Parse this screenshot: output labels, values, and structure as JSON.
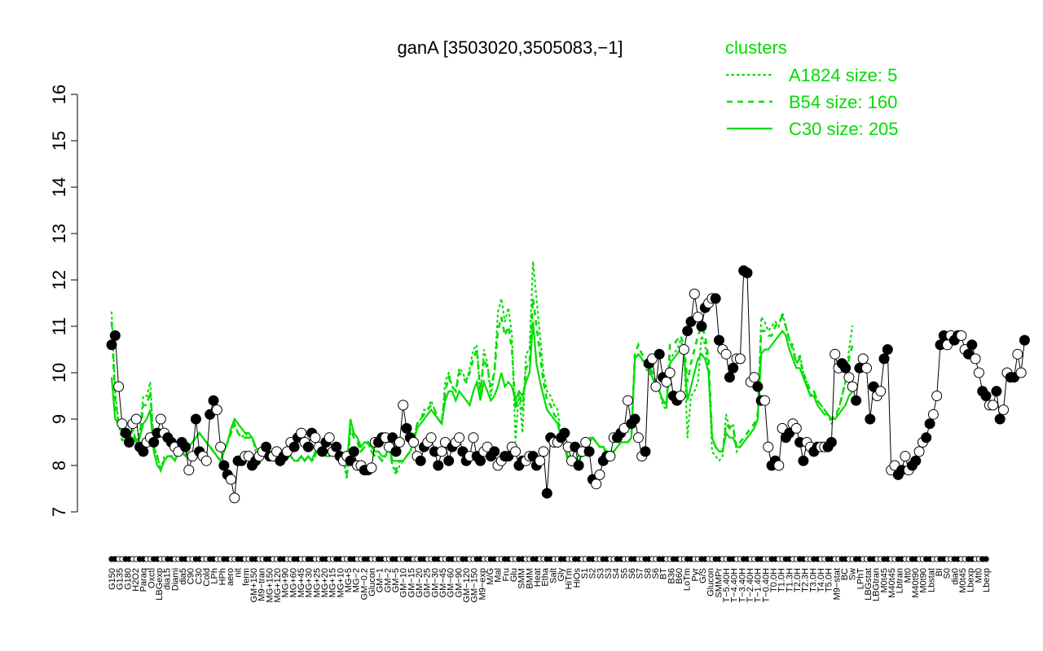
{
  "chart_data": {
    "type": "line",
    "title": "ganA [3503020,3505083,−1]",
    "xlabel": "",
    "ylabel": "",
    "ylim": [
      7,
      16
    ],
    "yticks": [
      "7",
      "8",
      "9",
      "10",
      "11",
      "12",
      "13",
      "14",
      "15",
      "16"
    ],
    "n_points": 250,
    "x_tick_labels": [
      "G150",
      "G135",
      "G180",
      "H2O2",
      "Paraq",
      "Oxctl",
      "LBGexp",
      "dia15",
      "Diami",
      "dia5",
      "C90",
      "C30",
      "Cold",
      "LPh",
      "HPh",
      "aero",
      "nit",
      "ferm",
      "GM+150",
      "M9−tran",
      "MG+150",
      "MG+120",
      "MG+90",
      "MG+60",
      "MG+45",
      "MG+30",
      "MG+25",
      "MG+20",
      "MG+15",
      "MG+10",
      "MG+5",
      "MG−2",
      "GM−0.2",
      "Glucon",
      "GM−1",
      "GM−2",
      "GM−5",
      "GM−10",
      "GM−15",
      "GM−20",
      "GM−25",
      "GM−30",
      "GM−45",
      "GM−60",
      "GM−90",
      "GM−120",
      "GM−150",
      "M9−exp",
      "M/G",
      "Mal",
      "Fru",
      "Glu",
      "SMM",
      "BMM",
      "Heat",
      "Etha",
      "Salt",
      "Gly",
      "HiTm",
      "HiOs",
      "S1",
      "S2",
      "S3",
      "S3",
      "S4",
      "S5",
      "S6",
      "S7",
      "S8",
      "S6",
      "BT",
      "B36",
      "B60",
      "LoTm",
      "Pyr",
      "G/S",
      "Glucon",
      "SMMPr",
      "T−5.40H",
      "T−4.40H",
      "T−3.40H",
      "T−2.40H",
      "T−1.40H",
      "T−0.40H",
      "T0.0H",
      "T1.0H",
      "T1.3H",
      "T2.0H",
      "T2.3H",
      "T3.0H",
      "T4.0H",
      "T5.0H",
      "M9−stat",
      "BC",
      "Sw",
      "LPhT",
      "LBGstat",
      "LBGtran",
      "M0t45",
      "M40t45",
      "Lbtran",
      "Mt0",
      "M40t90",
      "M0t90",
      "Lbstat",
      "BI",
      "S0",
      "dia0",
      "M0t45",
      "Lbexp",
      "Mt0",
      "Lbexp"
    ],
    "legend": {
      "title": "clusters",
      "position": "top-right",
      "entries": [
        {
          "label": "A1824 size: 5",
          "style": "dotted"
        },
        {
          "label": "B54 size: 160",
          "style": "dashed"
        },
        {
          "label": "C30 size: 205",
          "style": "solid"
        }
      ]
    },
    "colors": {
      "cluster": "#00dd00",
      "gene": "#000000"
    },
    "series": [
      {
        "name": "A1824 size: 5",
        "style": "dotted",
        "values": [
          11.3,
          9.6,
          8.9,
          8.5,
          8.7,
          8.4,
          8.8,
          8.5,
          8.7,
          9.5,
          9.5,
          9.8,
          8.4,
          8.2,
          7.9,
          8.2,
          8.2,
          8.2,
          8.1,
          8.3,
          8.3,
          8.2,
          8.4,
          8.5,
          8.6,
          8.7,
          8.6,
          8.5,
          8.4,
          8.3,
          8.2,
          8.1,
          8.3,
          8.5,
          8.7,
          8.9,
          8.7,
          8.6,
          8.7,
          8.6,
          8.6,
          8.3,
          8.3,
          8.4,
          8.2,
          8.3,
          8.2,
          8.1,
          8.0,
          8.3,
          8.2,
          8.2,
          8.1,
          8.1,
          8.2,
          8.1,
          8.2,
          8.1,
          8.2,
          8.4,
          8.3,
          8.2,
          8.2,
          8.4,
          8.3,
          8.2,
          8.1,
          7.7,
          8.8,
          8.7,
          8.6,
          8.3,
          8.4,
          8.5,
          8.3,
          8.2,
          8.2,
          8.1,
          8.2,
          8.4,
          8.0,
          7.8,
          8.0,
          8.1,
          8.2,
          8.3,
          8.6,
          8.9,
          9.0,
          9.2,
          9.2,
          9.4,
          9.2,
          9.0,
          8.9,
          9.8,
          10.0,
          9.7,
          9.6,
          10.1,
          10.0,
          9.8,
          10.1,
          10.5,
          10.6,
          9.4,
          10.5,
          10.2,
          9.5,
          10.0,
          11.3,
          11.6,
          11.1,
          11.4,
          10.8,
          8.5,
          9.6,
          8.7,
          10.4,
          10.5,
          12.4,
          11.6,
          10.8,
          10.0,
          9.6,
          9.5,
          9.3,
          9.2,
          8.6,
          8.4,
          8.1,
          8.0,
          8.1,
          8.1,
          8.2,
          8.3,
          8.6,
          8.6,
          8.5,
          8.4,
          8.4,
          8.2,
          8.3,
          8.3,
          8.4,
          8.5,
          8.5,
          8.5,
          8.6,
          10.3,
          10.4,
          10.3,
          10.1,
          10.0,
          9.9,
          9.7,
          9.6,
          9.3,
          9.2,
          10.3,
          10.4,
          10.5,
          10.7,
          10.5,
          8.6,
          9.5,
          9.6,
          9.8,
          10.8,
          10.6,
          10.0,
          8.3,
          8.2,
          8.1,
          8.2,
          9.1,
          8.8,
          8.9,
          8.3,
          8.4,
          8.5,
          8.6,
          8.7,
          8.8,
          9.0,
          11.2,
          11.1,
          10.9,
          11.0,
          11.1,
          11.0,
          11.3,
          11.0,
          10.7,
          10.6,
          10.2,
          10.4,
          10.0,
          9.8,
          9.5,
          9.6,
          9.4,
          9.3,
          9.2,
          9.1,
          8.9,
          9.0,
          9.2,
          9.5,
          9.8,
          10.5,
          11.0
        ]
      },
      {
        "name": "B54 size: 160",
        "style": "dashed",
        "values": [
          11.1,
          9.4,
          8.9,
          8.7,
          8.7,
          8.5,
          8.8,
          8.5,
          8.6,
          9.3,
          9.3,
          9.6,
          8.4,
          8.2,
          7.9,
          8.1,
          8.2,
          8.2,
          8.1,
          8.3,
          8.3,
          8.2,
          8.4,
          8.5,
          8.6,
          8.7,
          8.6,
          8.5,
          8.4,
          8.3,
          8.2,
          8.1,
          8.3,
          8.5,
          8.7,
          8.9,
          8.7,
          8.6,
          8.6,
          8.6,
          8.6,
          8.4,
          8.3,
          8.4,
          8.2,
          8.3,
          8.2,
          8.1,
          8.0,
          8.3,
          8.2,
          8.2,
          8.1,
          8.1,
          8.2,
          8.1,
          8.2,
          8.1,
          8.2,
          8.4,
          8.3,
          8.2,
          8.2,
          8.4,
          8.3,
          8.2,
          8.1,
          7.8,
          8.8,
          8.6,
          8.5,
          8.3,
          8.4,
          8.5,
          8.3,
          8.2,
          8.2,
          8.1,
          8.2,
          8.4,
          8.0,
          7.9,
          8.1,
          8.1,
          8.2,
          8.3,
          8.5,
          8.9,
          9.0,
          9.1,
          9.2,
          9.3,
          9.2,
          9.0,
          8.9,
          9.6,
          9.9,
          9.7,
          9.6,
          10.0,
          9.9,
          9.8,
          10.0,
          10.3,
          10.5,
          9.6,
          10.3,
          10.1,
          9.7,
          10.0,
          10.9,
          11.2,
          10.8,
          11.0,
          10.5,
          9.2,
          9.6,
          9.2,
          10.1,
          10.2,
          11.6,
          11.0,
          10.4,
          9.8,
          9.4,
          9.3,
          9.1,
          9.0,
          8.6,
          8.4,
          8.1,
          8.0,
          8.1,
          8.1,
          8.2,
          8.3,
          8.6,
          8.6,
          8.5,
          8.4,
          8.4,
          8.2,
          8.3,
          8.3,
          8.4,
          8.5,
          8.5,
          8.5,
          8.6,
          10.4,
          10.6,
          10.4,
          10.3,
          10.2,
          10.0,
          9.8,
          9.6,
          9.4,
          9.3,
          10.6,
          10.6,
          10.7,
          10.8,
          10.6,
          9.8,
          10.2,
          10.5,
          10.8,
          11.0,
          10.8,
          10.3,
          8.6,
          8.4,
          8.3,
          8.3,
          8.9,
          8.8,
          8.8,
          8.4,
          8.5,
          8.6,
          8.7,
          8.8,
          8.9,
          9.1,
          10.9,
          10.9,
          10.8,
          10.8,
          11.0,
          11.1,
          11.2,
          11.0,
          10.7,
          10.5,
          10.2,
          10.3,
          10.0,
          9.8,
          9.6,
          9.6,
          9.4,
          9.3,
          9.2,
          9.1,
          9.0,
          9.1,
          9.2,
          9.5,
          9.8,
          10.3,
          10.6
        ]
      },
      {
        "name": "C30 size: 205",
        "style": "solid",
        "values": [
          9.9,
          9.0,
          8.9,
          8.7,
          8.6,
          8.5,
          8.6,
          8.5,
          8.6,
          8.9,
          9.0,
          9.2,
          8.3,
          8.0,
          7.9,
          8.1,
          8.2,
          8.2,
          8.1,
          8.3,
          8.3,
          8.2,
          8.4,
          8.5,
          8.6,
          8.7,
          8.6,
          8.5,
          8.4,
          8.3,
          8.2,
          8.1,
          8.3,
          8.5,
          8.8,
          9.0,
          8.9,
          8.8,
          8.7,
          8.7,
          8.6,
          8.4,
          8.3,
          8.4,
          8.3,
          8.3,
          8.2,
          8.1,
          8.0,
          8.3,
          8.2,
          8.2,
          8.1,
          8.1,
          8.2,
          8.1,
          8.2,
          8.1,
          8.3,
          8.4,
          8.4,
          8.3,
          8.3,
          8.4,
          8.3,
          8.2,
          8.2,
          8.0,
          9.0,
          8.7,
          8.6,
          8.4,
          8.5,
          8.5,
          8.4,
          8.3,
          8.3,
          8.2,
          8.2,
          8.4,
          8.1,
          8.1,
          8.1,
          8.1,
          8.2,
          8.3,
          8.5,
          8.8,
          8.9,
          9.0,
          9.1,
          9.2,
          9.1,
          9.0,
          8.9,
          9.4,
          9.6,
          9.6,
          9.4,
          9.6,
          9.5,
          9.4,
          9.3,
          9.6,
          9.8,
          9.4,
          9.8,
          9.6,
          9.4,
          9.5,
          9.7,
          10.0,
          9.7,
          9.8,
          9.7,
          9.4,
          9.6,
          9.5,
          9.8,
          10.0,
          11.1,
          10.2,
          9.8,
          9.5,
          9.2,
          9.1,
          9.0,
          8.9,
          8.6,
          8.4,
          8.2,
          8.1,
          8.1,
          8.2,
          8.2,
          8.3,
          8.5,
          8.6,
          8.5,
          8.4,
          8.4,
          8.3,
          8.3,
          8.3,
          8.4,
          8.5,
          8.5,
          8.5,
          8.6,
          10.3,
          10.4,
          10.3,
          10.2,
          10.1,
          9.9,
          9.7,
          9.6,
          9.4,
          9.3,
          10.2,
          10.3,
          10.4,
          10.5,
          10.4,
          9.4,
          9.7,
          10.0,
          10.3,
          10.4,
          10.3,
          10.0,
          8.6,
          8.4,
          8.3,
          8.3,
          8.7,
          8.6,
          8.6,
          8.4,
          8.4,
          8.5,
          8.6,
          8.7,
          8.8,
          9.0,
          10.4,
          10.5,
          10.5,
          10.6,
          10.7,
          10.8,
          10.9,
          10.8,
          10.5,
          10.3,
          10.1,
          10.1,
          9.9,
          9.7,
          9.5,
          9.5,
          9.3,
          9.2,
          9.1,
          9.1,
          9.0,
          9.0,
          9.1,
          9.2,
          9.3,
          9.5,
          9.6
        ]
      },
      {
        "name": "ganA",
        "style": "points",
        "values": [
          10.6,
          10.8,
          9.7,
          8.9,
          8.7,
          8.5,
          8.9,
          9.0,
          8.4,
          8.3,
          8.5,
          8.6,
          8.5,
          8.7,
          9.0,
          8.7,
          8.6,
          8.5,
          8.4,
          8.3,
          8.5,
          8.4,
          7.9,
          8.2,
          9.0,
          8.3,
          8.2,
          8.1,
          9.1,
          9.4,
          9.2,
          8.4,
          8.0,
          7.8,
          7.7,
          7.3,
          8.1,
          8.1,
          8.2,
          8.2,
          8.0,
          8.1,
          8.2,
          8.3,
          8.4,
          8.2,
          8.2,
          8.3,
          8.1,
          8.2,
          8.3,
          8.5,
          8.4,
          8.6,
          8.7,
          8.5,
          8.4,
          8.7,
          8.6,
          8.4,
          8.3,
          8.5,
          8.6,
          8.3,
          8.4,
          8.2,
          8.1,
          8.2,
          8.1,
          8.3,
          8.0,
          8.0,
          7.9,
          7.9,
          7.95,
          8.5,
          8.5,
          8.6,
          8.6,
          8.4,
          8.6,
          8.3,
          8.5,
          9.3,
          8.8,
          8.6,
          8.5,
          8.2,
          8.1,
          8.4,
          8.5,
          8.6,
          8.3,
          8.0,
          8.3,
          8.5,
          8.1,
          8.4,
          8.5,
          8.6,
          8.3,
          8.1,
          8.2,
          8.6,
          8.2,
          8.1,
          8.3,
          8.4,
          8.2,
          8.3,
          8.0,
          8.1,
          8.2,
          8.2,
          8.4,
          8.3,
          8.0,
          8.1,
          8.1,
          8.2,
          8.2,
          8.0,
          8.1,
          8.3,
          7.4,
          8.6,
          8.5,
          8.5,
          8.6,
          8.7,
          8.4,
          8.1,
          8.4,
          8.0,
          8.3,
          8.5,
          8.3,
          7.7,
          7.6,
          7.8,
          8.1,
          8.2,
          8.2,
          8.6,
          8.6,
          8.7,
          8.8,
          9.4,
          8.9,
          9.0,
          8.6,
          8.2,
          8.3,
          10.2,
          10.3,
          9.7,
          10.4,
          9.9,
          9.8,
          10.0,
          9.5,
          9.4,
          9.5,
          10.5,
          10.9,
          11.1,
          11.7,
          11.2,
          11.0,
          11.4,
          11.5,
          11.6,
          11.6,
          10.7,
          10.5,
          10.4,
          9.9,
          10.1,
          10.3,
          10.3,
          12.2,
          12.15,
          9.8,
          9.9,
          9.7,
          9.4,
          9.4,
          8.4,
          8.0,
          8.1,
          8.0,
          8.8,
          8.6,
          8.7,
          8.9,
          8.8,
          8.5,
          8.1,
          8.5,
          8.4,
          8.3,
          8.4,
          8.4,
          8.4,
          8.4,
          8.5,
          10.4,
          10.1,
          10.2,
          10.1,
          9.9,
          9.7,
          9.4,
          10.1,
          10.3,
          10.1,
          9.0,
          9.7,
          9.5,
          9.6,
          10.3,
          10.5,
          7.9,
          8.0,
          7.8,
          7.9,
          8.2,
          7.9,
          8.0,
          8.1,
          8.3,
          8.5,
          8.6,
          8.9,
          9.1,
          9.5,
          10.6,
          10.8,
          10.6,
          10.8,
          10.7,
          10.8,
          10.8,
          10.5,
          10.4,
          10.6,
          10.3,
          10.0,
          9.6,
          9.5,
          9.3,
          9.3,
          9.6,
          9.0,
          9.2,
          10.0,
          9.9,
          9.9,
          10.4,
          10.0,
          10.7
        ]
      }
    ]
  }
}
